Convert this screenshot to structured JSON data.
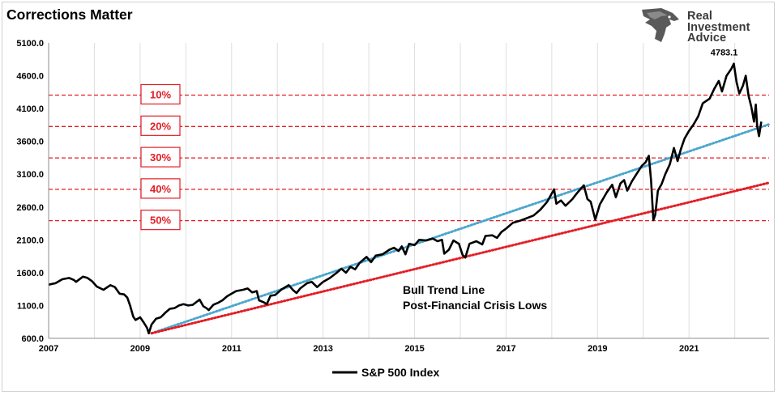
{
  "chart_data": {
    "type": "line",
    "title": "Corrections Matter",
    "xlabel": "",
    "ylabel": "",
    "xlim": [
      2007,
      2022.75
    ],
    "ylim": [
      600,
      5100
    ],
    "y_ticks": [
      "600.0",
      "1100.0",
      "1600.0",
      "2100.0",
      "2600.0",
      "3100.0",
      "3600.0",
      "4100.0",
      "4600.0",
      "5100.0"
    ],
    "x_ticks": [
      "2007",
      "2009",
      "2011",
      "2013",
      "2015",
      "2017",
      "2019",
      "2021"
    ],
    "legend": {
      "position": "bottom",
      "label": "S&P 500 Index"
    },
    "grid": "vertical",
    "series": [
      {
        "name": "S&P 500 Index",
        "color": "#000000",
        "points": [
          [
            2007.0,
            1418
          ],
          [
            2007.15,
            1440
          ],
          [
            2007.3,
            1500
          ],
          [
            2007.45,
            1520
          ],
          [
            2007.55,
            1490
          ],
          [
            2007.6,
            1460
          ],
          [
            2007.75,
            1540
          ],
          [
            2007.85,
            1520
          ],
          [
            2007.95,
            1470
          ],
          [
            2008.05,
            1390
          ],
          [
            2008.2,
            1340
          ],
          [
            2008.35,
            1410
          ],
          [
            2008.45,
            1380
          ],
          [
            2008.55,
            1280
          ],
          [
            2008.65,
            1270
          ],
          [
            2008.72,
            1220
          ],
          [
            2008.78,
            1100
          ],
          [
            2008.85,
            930
          ],
          [
            2008.9,
            880
          ],
          [
            2008.95,
            900
          ],
          [
            2009.0,
            920
          ],
          [
            2009.08,
            840
          ],
          [
            2009.15,
            760
          ],
          [
            2009.19,
            677
          ],
          [
            2009.25,
            810
          ],
          [
            2009.35,
            900
          ],
          [
            2009.45,
            920
          ],
          [
            2009.55,
            990
          ],
          [
            2009.65,
            1050
          ],
          [
            2009.75,
            1060
          ],
          [
            2009.85,
            1100
          ],
          [
            2009.95,
            1120
          ],
          [
            2010.05,
            1100
          ],
          [
            2010.15,
            1110
          ],
          [
            2010.3,
            1190
          ],
          [
            2010.38,
            1090
          ],
          [
            2010.45,
            1060
          ],
          [
            2010.5,
            1030
          ],
          [
            2010.6,
            1110
          ],
          [
            2010.7,
            1140
          ],
          [
            2010.8,
            1180
          ],
          [
            2010.9,
            1240
          ],
          [
            2011.0,
            1280
          ],
          [
            2011.1,
            1320
          ],
          [
            2011.25,
            1340
          ],
          [
            2011.35,
            1360
          ],
          [
            2011.45,
            1300
          ],
          [
            2011.55,
            1320
          ],
          [
            2011.6,
            1180
          ],
          [
            2011.7,
            1150
          ],
          [
            2011.77,
            1120
          ],
          [
            2011.85,
            1250
          ],
          [
            2011.95,
            1260
          ],
          [
            2012.1,
            1350
          ],
          [
            2012.25,
            1410
          ],
          [
            2012.35,
            1330
          ],
          [
            2012.42,
            1290
          ],
          [
            2012.5,
            1360
          ],
          [
            2012.65,
            1440
          ],
          [
            2012.75,
            1460
          ],
          [
            2012.87,
            1380
          ],
          [
            2013.0,
            1460
          ],
          [
            2013.15,
            1520
          ],
          [
            2013.3,
            1600
          ],
          [
            2013.4,
            1660
          ],
          [
            2013.5,
            1600
          ],
          [
            2013.6,
            1690
          ],
          [
            2013.7,
            1650
          ],
          [
            2013.8,
            1750
          ],
          [
            2013.95,
            1840
          ],
          [
            2014.05,
            1760
          ],
          [
            2014.15,
            1860
          ],
          [
            2014.3,
            1880
          ],
          [
            2014.45,
            1950
          ],
          [
            2014.55,
            1980
          ],
          [
            2014.65,
            1930
          ],
          [
            2014.72,
            2000
          ],
          [
            2014.8,
            1880
          ],
          [
            2014.88,
            2040
          ],
          [
            2015.0,
            2020
          ],
          [
            2015.1,
            2100
          ],
          [
            2015.25,
            2090
          ],
          [
            2015.4,
            2120
          ],
          [
            2015.5,
            2080
          ],
          [
            2015.6,
            2100
          ],
          [
            2015.65,
            1890
          ],
          [
            2015.75,
            1950
          ],
          [
            2015.85,
            2090
          ],
          [
            2015.97,
            2040
          ],
          [
            2016.05,
            1870
          ],
          [
            2016.11,
            1830
          ],
          [
            2016.2,
            2040
          ],
          [
            2016.35,
            2080
          ],
          [
            2016.48,
            2030
          ],
          [
            2016.55,
            2160
          ],
          [
            2016.7,
            2170
          ],
          [
            2016.8,
            2130
          ],
          [
            2016.9,
            2220
          ],
          [
            2017.0,
            2270
          ],
          [
            2017.15,
            2360
          ],
          [
            2017.3,
            2390
          ],
          [
            2017.45,
            2430
          ],
          [
            2017.6,
            2470
          ],
          [
            2017.75,
            2560
          ],
          [
            2017.9,
            2680
          ],
          [
            2018.05,
            2870
          ],
          [
            2018.1,
            2650
          ],
          [
            2018.2,
            2700
          ],
          [
            2018.3,
            2620
          ],
          [
            2018.45,
            2720
          ],
          [
            2018.55,
            2810
          ],
          [
            2018.7,
            2930
          ],
          [
            2018.78,
            2720
          ],
          [
            2018.85,
            2680
          ],
          [
            2018.95,
            2410
          ],
          [
            2019.05,
            2640
          ],
          [
            2019.2,
            2820
          ],
          [
            2019.32,
            2940
          ],
          [
            2019.4,
            2750
          ],
          [
            2019.5,
            2960
          ],
          [
            2019.58,
            3010
          ],
          [
            2019.65,
            2850
          ],
          [
            2019.75,
            2990
          ],
          [
            2019.85,
            3100
          ],
          [
            2019.97,
            3230
          ],
          [
            2020.05,
            3280
          ],
          [
            2020.12,
            3380
          ],
          [
            2020.17,
            3000
          ],
          [
            2020.22,
            2400
          ],
          [
            2020.26,
            2480
          ],
          [
            2020.32,
            2850
          ],
          [
            2020.4,
            2950
          ],
          [
            2020.48,
            3100
          ],
          [
            2020.58,
            3250
          ],
          [
            2020.67,
            3500
          ],
          [
            2020.75,
            3300
          ],
          [
            2020.82,
            3480
          ],
          [
            2020.9,
            3640
          ],
          [
            2021.0,
            3760
          ],
          [
            2021.1,
            3860
          ],
          [
            2021.2,
            3980
          ],
          [
            2021.3,
            4180
          ],
          [
            2021.45,
            4250
          ],
          [
            2021.55,
            4400
          ],
          [
            2021.65,
            4520
          ],
          [
            2021.72,
            4360
          ],
          [
            2021.82,
            4600
          ],
          [
            2021.92,
            4700
          ],
          [
            2021.98,
            4783
          ],
          [
            2022.04,
            4500
          ],
          [
            2022.1,
            4330
          ],
          [
            2022.18,
            4450
          ],
          [
            2022.24,
            4600
          ],
          [
            2022.3,
            4300
          ],
          [
            2022.36,
            4130
          ],
          [
            2022.42,
            3900
          ],
          [
            2022.46,
            4160
          ],
          [
            2022.49,
            3830
          ],
          [
            2022.53,
            3680
          ],
          [
            2022.58,
            3900
          ]
        ]
      },
      {
        "name": "Bull Trend Line",
        "color": "#4ca6cd",
        "style": "dotted",
        "points": [
          [
            2009.25,
            677
          ],
          [
            2022.75,
            3860
          ]
        ]
      },
      {
        "name": "Post-Financial Crisis Lows",
        "color": "#e21d25",
        "style": "dotted",
        "points": [
          [
            2009.25,
            677
          ],
          [
            2022.75,
            2970
          ]
        ]
      }
    ],
    "corrections": [
      {
        "label": "10%",
        "value": 4305
      },
      {
        "label": "20%",
        "value": 3826
      },
      {
        "label": "30%",
        "value": 3348
      },
      {
        "label": "40%",
        "value": 2870
      },
      {
        "label": "50%",
        "value": 2392
      }
    ],
    "annotations": [
      {
        "text": "4783.1",
        "x": 2021.98,
        "y": 4783
      },
      {
        "lines": [
          "Bull Trend Line",
          "Post-Financial Crisis Lows"
        ]
      }
    ],
    "brand": {
      "line1": "Real",
      "line2": "Investment",
      "line3": "Advice"
    }
  }
}
